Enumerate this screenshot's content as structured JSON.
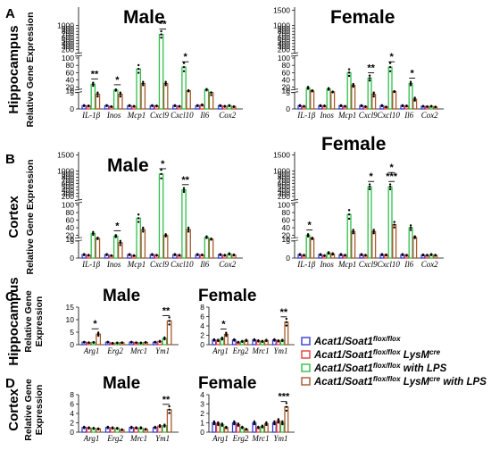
{
  "rows": [
    {
      "id": "A",
      "letter": "A",
      "region": "Hippocampus",
      "ylabel": [
        "Relative Gene Expression"
      ]
    },
    {
      "id": "B",
      "letter": "B",
      "region": "Cortex",
      "ylabel": [
        "Relative Gene Expression"
      ]
    },
    {
      "id": "C",
      "letter": "C",
      "region": "Hippocampus",
      "ylabel": [
        "Relative Gene",
        "Expression"
      ]
    },
    {
      "id": "D",
      "letter": "D",
      "region": "Cortex",
      "ylabel": [
        "Relative Gene",
        "Expression"
      ]
    }
  ],
  "legend": [
    {
      "main": "Acat1/Soat1",
      "sup": "flox/flox",
      "rest": "",
      "color": "#3a3ad9"
    },
    {
      "main": "Acat1/Soat1",
      "sup": "flox/flox",
      "rest": " LysM",
      "sup2": "cre",
      "rest2": "",
      "color": "#e83c3c"
    },
    {
      "main": "Acat1/Soat1",
      "sup": "flox/flox",
      "rest": " with LPS",
      "color": "#2fbf4a"
    },
    {
      "main": "Acat1/Soat1",
      "sup": "flox/flox",
      "rest": " LysM",
      "sup2": "cre",
      "rest2": " with LPS",
      "color": "#a65a2e"
    }
  ],
  "group_colors": [
    "#3a3ad9",
    "#e83c3c",
    "#2fbf4a",
    "#a65a2e"
  ],
  "chart_data": [
    {
      "type": "bar",
      "panel": "A",
      "title": "Male",
      "ylabel": "Relative Gene Expression",
      "axis": "broken",
      "ticks": [
        0,
        5,
        10,
        20,
        40,
        60,
        80,
        100,
        200,
        300,
        400,
        500,
        600,
        700,
        800,
        900,
        1000
      ],
      "categories": [
        "IL-1β",
        "Inos",
        "Mcp1",
        "Cxcl9",
        "Cxcl10",
        "Il6",
        "Cox2"
      ],
      "series": [
        {
          "name": "Acat1/Soat1 flox/flox",
          "values": [
            1.0,
            1.0,
            1.0,
            1.0,
            1.0,
            1.0,
            1.0
          ]
        },
        {
          "name": "Acat1/Soat1 flox/flox LysMcre",
          "values": [
            0.9,
            0.7,
            0.8,
            0.9,
            0.8,
            1.2,
            0.8
          ]
        },
        {
          "name": "Acat1/Soat1 flox/flox with LPS",
          "values": [
            28,
            12,
            70,
            700,
            75,
            13,
            1.0
          ]
        },
        {
          "name": "Acat1/Soat1 flox/flox LysMcre with LPS",
          "values": [
            4.5,
            4.5,
            30,
            30,
            10,
            5,
            0.7
          ]
        }
      ],
      "significance": [
        {
          "category": "IL-1β",
          "label": "**"
        },
        {
          "category": "Inos",
          "label": "*"
        },
        {
          "category": "Cxcl9",
          "label": "**"
        },
        {
          "category": "Cxcl10",
          "label": "*"
        }
      ]
    },
    {
      "type": "bar",
      "panel": "A",
      "title": "Female",
      "ylabel": "",
      "axis": "broken",
      "ticks": [
        0,
        5,
        10,
        20,
        40,
        60,
        80,
        100,
        200,
        300,
        400,
        500,
        600,
        700,
        800,
        900,
        1000,
        1500
      ],
      "categories": [
        "IL-1β",
        "Inos",
        "Mcp1",
        "Cxcl9",
        "Cxcl10",
        "Il6",
        "Cox2"
      ],
      "series": [
        {
          "name": "Acat1/Soat1 flox/flox",
          "values": [
            1.0,
            1.0,
            1.0,
            1.0,
            1.0,
            1.0,
            0.8
          ]
        },
        {
          "name": "Acat1/Soat1 flox/flox LysMcre",
          "values": [
            0.8,
            0.9,
            0.8,
            0.7,
            0.6,
            0.9,
            0.7
          ]
        },
        {
          "name": "Acat1/Soat1 flox/flox with LPS",
          "values": [
            18,
            15,
            60,
            45,
            75,
            30,
            0.8
          ]
        },
        {
          "name": "Acat1/Soat1 flox/flox LysMcre with LPS",
          "values": [
            10,
            7,
            25,
            4.5,
            8,
            3,
            0.6
          ]
        }
      ],
      "significance": [
        {
          "category": "Cxcl9",
          "label": "**"
        },
        {
          "category": "Cxcl10",
          "label": "*"
        },
        {
          "category": "Il6",
          "label": "*"
        }
      ]
    },
    {
      "type": "bar",
      "panel": "B",
      "title": "Male",
      "ylabel": "Relative Gene Expression",
      "axis": "broken",
      "ticks": [
        0,
        5,
        10,
        20,
        40,
        60,
        80,
        100,
        200,
        300,
        400,
        500,
        600,
        700,
        800,
        900,
        1000,
        1500
      ],
      "categories": [
        "IL-1β",
        "Inos",
        "Mcp1",
        "Cxcl9",
        "Cxcl10",
        "Il6",
        "Cox2"
      ],
      "series": [
        {
          "name": "Acat1/Soat1 flox/flox",
          "values": [
            1.0,
            1.0,
            1.0,
            1.0,
            1.0,
            1.0,
            1.0
          ]
        },
        {
          "name": "Acat1/Soat1 flox/flox LysMcre",
          "values": [
            0.8,
            0.7,
            0.7,
            0.8,
            0.8,
            0.9,
            0.8
          ]
        },
        {
          "name": "Acat1/Soat1 flox/flox with LPS",
          "values": [
            25,
            18,
            65,
            900,
            400,
            15,
            1.2
          ]
        },
        {
          "name": "Acat1/Soat1 flox/flox LysMcre with LPS",
          "values": [
            12,
            4.5,
            35,
            20,
            35,
            10,
            0.9
          ]
        }
      ],
      "significance": [
        {
          "category": "Inos",
          "label": "*"
        },
        {
          "category": "Cxcl9",
          "label": "*"
        },
        {
          "category": "Cxcl10",
          "label": "**"
        }
      ]
    },
    {
      "type": "bar",
      "panel": "B",
      "title": "Female",
      "ylabel": "",
      "axis": "broken",
      "ticks": [
        0,
        5,
        10,
        20,
        40,
        60,
        80,
        100,
        200,
        300,
        400,
        500,
        600,
        700,
        800,
        900,
        1000,
        1500
      ],
      "categories": [
        "IL-1β",
        "Inos",
        "Mcp1",
        "Cxcl9",
        "Cxcl10",
        "Il6",
        "Cox2"
      ],
      "series": [
        {
          "name": "Acat1/Soat1 flox/flox",
          "values": [
            1.0,
            1.0,
            1.0,
            1.0,
            1.0,
            1.0,
            0.9
          ]
        },
        {
          "name": "Acat1/Soat1 flox/flox LysMcre",
          "values": [
            0.8,
            0.7,
            0.8,
            0.8,
            0.9,
            0.8,
            0.8
          ]
        },
        {
          "name": "Acat1/Soat1 flox/flox with LPS",
          "values": [
            20,
            1.5,
            75,
            500,
            500,
            40,
            1.0
          ]
        },
        {
          "name": "Acat1/Soat1 flox/flox LysMcre with LPS",
          "values": [
            12,
            1.2,
            30,
            30,
            48,
            15,
            0.8
          ]
        }
      ],
      "significance": [
        {
          "category": "IL-1β",
          "label": "*"
        },
        {
          "category": "Cxcl9",
          "label": "*"
        },
        {
          "category": "Cxcl10",
          "label": "***"
        },
        {
          "category": "Cxcl10",
          "label": "*"
        }
      ]
    },
    {
      "type": "bar",
      "panel": "C",
      "title": "Male",
      "ylabel": "Relative Gene Expression",
      "ylim": [
        0,
        15
      ],
      "ticks": [
        0,
        5,
        10,
        15
      ],
      "categories": [
        "Arg1",
        "Erg2",
        "Mrc1",
        "Ym1"
      ],
      "series": [
        {
          "name": "Acat1/Soat1 flox/flox",
          "values": [
            1.0,
            1.0,
            1.0,
            1.0
          ]
        },
        {
          "name": "Acat1/Soat1 flox/flox LysMcre",
          "values": [
            0.8,
            0.6,
            0.8,
            1.3
          ]
        },
        {
          "name": "Acat1/Soat1 flox/flox with LPS",
          "values": [
            0.9,
            0.7,
            0.7,
            2.5
          ]
        },
        {
          "name": "Acat1/Soat1 flox/flox LysMcre with LPS",
          "values": [
            4.2,
            0.8,
            0.9,
            9.5
          ]
        }
      ],
      "significance": [
        {
          "category": "Arg1",
          "label": "*"
        },
        {
          "category": "Ym1",
          "label": "**"
        }
      ]
    },
    {
      "type": "bar",
      "panel": "C",
      "title": "Female",
      "ylabel": "",
      "ylim": [
        0,
        8
      ],
      "ticks": [
        0,
        2,
        4,
        6,
        8
      ],
      "categories": [
        "Arg1",
        "Erg2",
        "Mrc1",
        "Ym1"
      ],
      "series": [
        {
          "name": "Acat1/Soat1 flox/flox",
          "values": [
            1.0,
            1.0,
            1.0,
            1.0
          ]
        },
        {
          "name": "Acat1/Soat1 flox/flox LysMcre",
          "values": [
            0.9,
            0.5,
            0.8,
            0.8
          ]
        },
        {
          "name": "Acat1/Soat1 flox/flox with LPS",
          "values": [
            1.3,
            0.7,
            0.7,
            0.9
          ]
        },
        {
          "name": "Acat1/Soat1 flox/flox LysMcre with LPS",
          "values": [
            2.2,
            0.9,
            0.9,
            4.8
          ]
        }
      ],
      "significance": [
        {
          "category": "Arg1",
          "label": "*"
        },
        {
          "category": "Ym1",
          "label": "**"
        }
      ]
    },
    {
      "type": "bar",
      "panel": "D",
      "title": "Male",
      "ylabel": "Relative Gene Expression",
      "ylim": [
        0,
        8
      ],
      "ticks": [
        0,
        2,
        4,
        6,
        8
      ],
      "categories": [
        "Arg1",
        "Erg2",
        "Mrc1",
        "Ym1"
      ],
      "series": [
        {
          "name": "Acat1/Soat1 flox/flox",
          "values": [
            1.0,
            1.0,
            1.0,
            1.0
          ]
        },
        {
          "name": "Acat1/Soat1 flox/flox LysMcre",
          "values": [
            0.9,
            0.9,
            0.9,
            1.3
          ]
        },
        {
          "name": "Acat1/Soat1 flox/flox with LPS",
          "values": [
            0.8,
            0.8,
            0.9,
            1.4
          ]
        },
        {
          "name": "Acat1/Soat1 flox/flox LysMcre with LPS",
          "values": [
            0.7,
            0.5,
            0.6,
            4.8
          ]
        }
      ],
      "significance": [
        {
          "category": "Ym1",
          "label": "**"
        }
      ]
    },
    {
      "type": "bar",
      "panel": "D",
      "title": "Female",
      "ylabel": "",
      "ylim": [
        0,
        4
      ],
      "ticks": [
        0,
        1,
        2,
        3,
        4
      ],
      "categories": [
        "Arg1",
        "Erg2",
        "Mrc1",
        "Ym1"
      ],
      "series": [
        {
          "name": "Acat1/Soat1 flox/flox",
          "values": [
            1.0,
            1.0,
            1.0,
            1.0
          ]
        },
        {
          "name": "Acat1/Soat1 flox/flox LysMcre",
          "values": [
            0.9,
            0.8,
            0.5,
            1.2
          ]
        },
        {
          "name": "Acat1/Soat1 flox/flox with LPS",
          "values": [
            0.8,
            0.5,
            0.6,
            1.0
          ]
        },
        {
          "name": "Acat1/Soat1 flox/flox LysMcre with LPS",
          "values": [
            0.5,
            0.3,
            0.9,
            2.7
          ]
        }
      ],
      "significance": [
        {
          "category": "Ym1",
          "label": "***"
        }
      ]
    }
  ]
}
